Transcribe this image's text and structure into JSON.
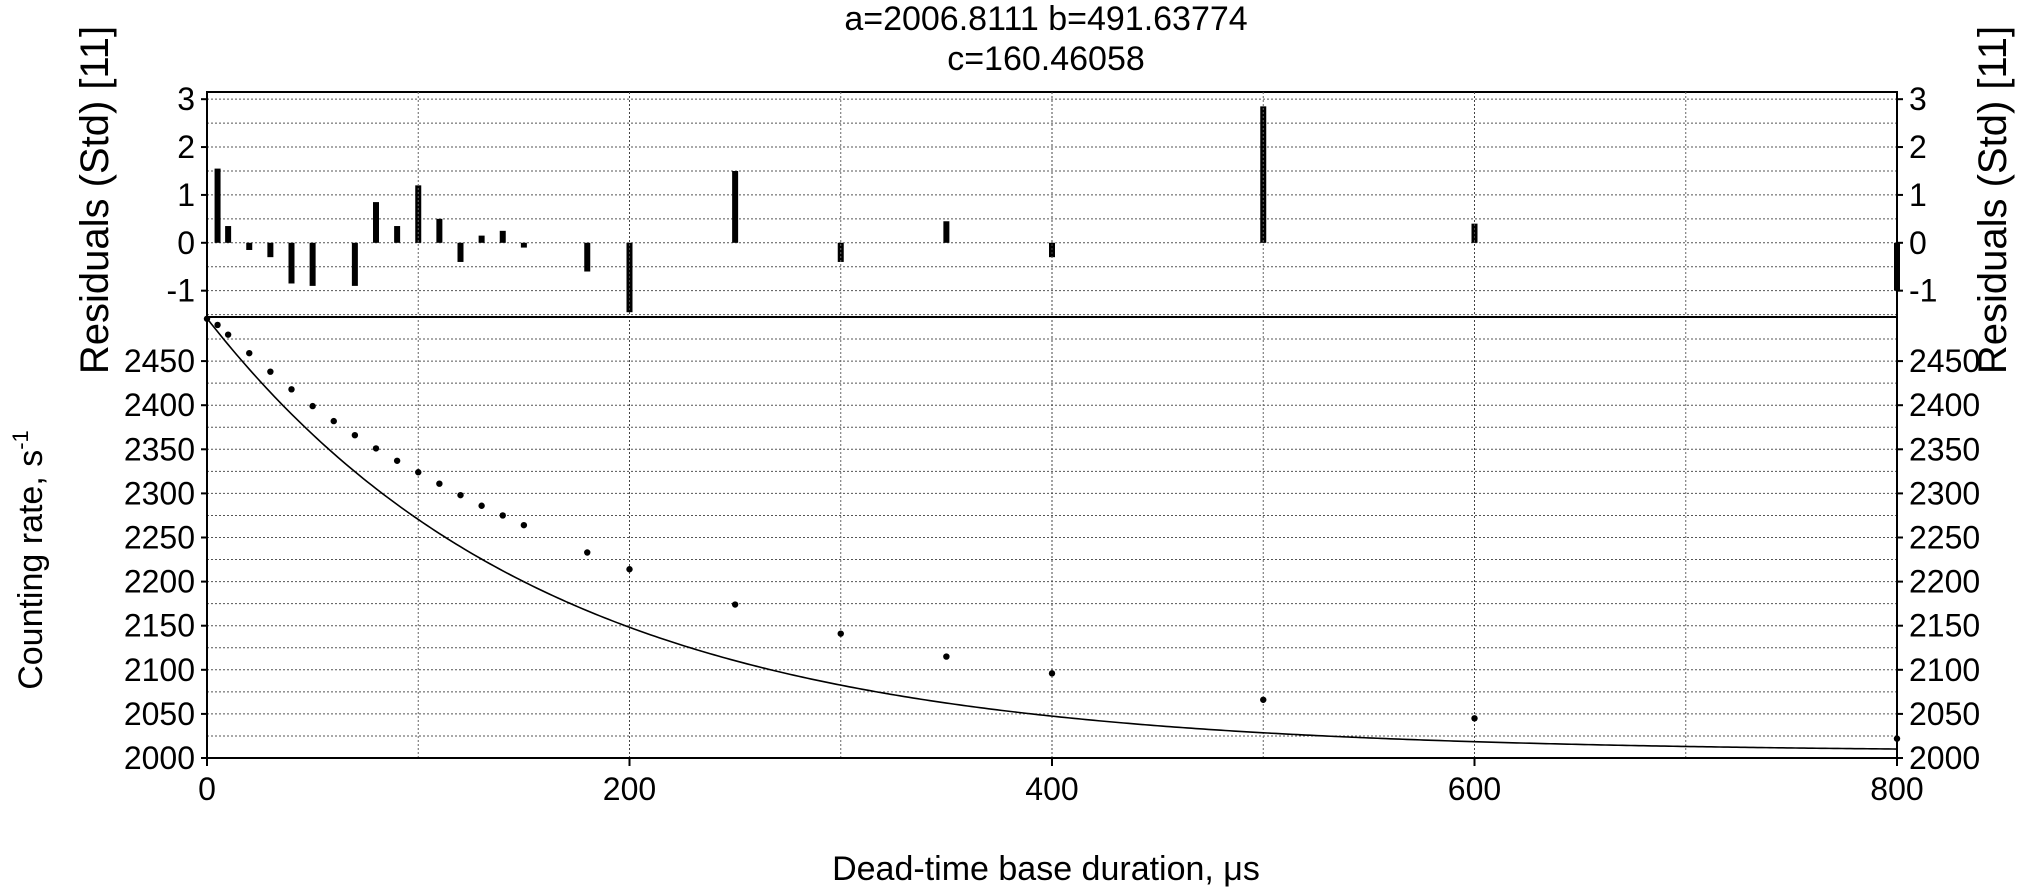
{
  "chart_data": [
    {
      "type": "bar",
      "panel": "residuals",
      "title_lines": [
        "a=2006.8111 b=491.63774",
        "c=160.46058"
      ],
      "ylabel_left": "Residuals (Std) [11]",
      "ylabel_right": "Residuals (Std) [11]",
      "ylim": [
        -1.55,
        3.15
      ],
      "yticks": [
        3,
        2,
        1,
        0,
        -1
      ],
      "yticklabels": [
        "3",
        "2",
        "1",
        "0",
        "-1"
      ],
      "xlim": [
        0,
        800
      ],
      "grid": true,
      "x": [
        5,
        10,
        20,
        30,
        40,
        50,
        70,
        80,
        90,
        100,
        110,
        120,
        130,
        140,
        150,
        180,
        200,
        250,
        300,
        350,
        400,
        500,
        600,
        800
      ],
      "values": [
        1.55,
        0.35,
        -0.15,
        -0.3,
        -0.85,
        -0.9,
        -0.9,
        0.85,
        0.35,
        1.2,
        0.5,
        -0.4,
        0.15,
        0.25,
        -0.1,
        -0.6,
        -1.45,
        1.5,
        -0.4,
        0.45,
        -0.3,
        2.85,
        0.4,
        -1.0
      ]
    },
    {
      "type": "line",
      "panel": "main",
      "xlabel": "Dead-time base duration, μs",
      "ylabel": "Counting rate, s",
      "ylabel_sup": "-1",
      "xlim": [
        0,
        800
      ],
      "ylim": [
        2000,
        2500
      ],
      "xticks": [
        0,
        200,
        400,
        600,
        800
      ],
      "xticklabels": [
        "0",
        "200",
        "400",
        "600",
        "800"
      ],
      "yticks": [
        2450,
        2400,
        2350,
        2300,
        2250,
        2200,
        2150,
        2100,
        2050,
        2000
      ],
      "yticklabels": [
        "2450",
        "2400",
        "2350",
        "2300",
        "2250",
        "2200",
        "2150",
        "2100",
        "2050",
        "2000"
      ],
      "grid": true,
      "fit": {
        "a": 2006.8111,
        "b": 491.63774,
        "c": 160.46058
      },
      "x": [
        0,
        5,
        10,
        20,
        30,
        40,
        50,
        60,
        70,
        80,
        90,
        100,
        110,
        120,
        130,
        140,
        150,
        180,
        200,
        250,
        300,
        350,
        400,
        500,
        600,
        800
      ],
      "y": [
        2498,
        2491,
        2480,
        2459,
        2438,
        2418,
        2399,
        2382,
        2366,
        2351,
        2337,
        2324,
        2311,
        2298,
        2286,
        2275,
        2264,
        2233,
        2214,
        2174,
        2141,
        2115,
        2096,
        2066,
        2045,
        2022
      ]
    }
  ]
}
